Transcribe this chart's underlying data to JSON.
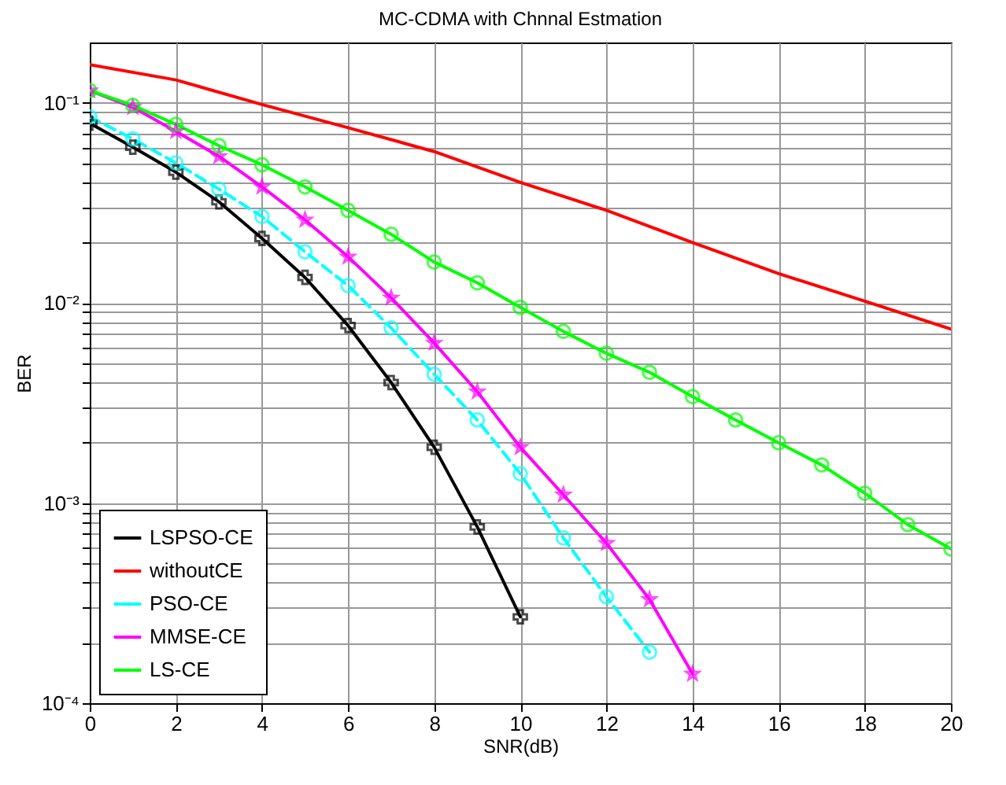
{
  "chart_data": {
    "type": "line",
    "title": "MC-CDMA with Chnnal Estmation",
    "xlabel": "SNR(dB)",
    "ylabel": "BER",
    "log": "y",
    "grid": true,
    "legend": "bottom left",
    "xlim": [
      0,
      20
    ],
    "xticks": [
      0,
      2,
      4,
      6,
      8,
      10,
      12,
      14,
      16,
      18,
      20
    ],
    "ylim": [
      0.0001,
      0.2
    ],
    "yticks": [
      {
        "value": 0.0001,
        "label": "10⁻⁴"
      },
      {
        "value": 0.0002,
        "label": null
      },
      {
        "value": 0.0003,
        "label": null
      },
      {
        "value": 0.0004,
        "label": null
      },
      {
        "value": 0.0005,
        "label": null
      },
      {
        "value": 0.0006,
        "label": null
      },
      {
        "value": 0.0007,
        "label": null
      },
      {
        "value": 0.0008,
        "label": null
      },
      {
        "value": 0.0009,
        "label": null
      },
      {
        "value": 0.001,
        "label": "10⁻³"
      },
      {
        "value": 0.002,
        "label": null
      },
      {
        "value": 0.003,
        "label": null
      },
      {
        "value": 0.004,
        "label": null
      },
      {
        "value": 0.005,
        "label": null
      },
      {
        "value": 0.006,
        "label": null
      },
      {
        "value": 0.007,
        "label": null
      },
      {
        "value": 0.008,
        "label": null
      },
      {
        "value": 0.009,
        "label": null
      },
      {
        "value": 0.01,
        "label": "10⁻²"
      },
      {
        "value": 0.02,
        "label": null
      },
      {
        "value": 0.03,
        "label": null
      },
      {
        "value": 0.04,
        "label": null
      },
      {
        "value": 0.05,
        "label": null
      },
      {
        "value": 0.06,
        "label": null
      },
      {
        "value": 0.07,
        "label": null
      },
      {
        "value": 0.08,
        "label": null
      },
      {
        "value": 0.09,
        "label": null
      },
      {
        "value": 0.1,
        "label": "10⁻¹"
      }
    ],
    "series": [
      {
        "name": "LSPSO-CE",
        "color": "#000000",
        "marker": "cross",
        "line_style": "solid",
        "x": [
          0,
          1,
          2,
          3,
          4,
          5,
          6,
          7,
          8,
          9,
          10
        ],
        "values": [
          0.079,
          0.06,
          0.045,
          0.032,
          0.021,
          0.0134,
          0.0077,
          0.004,
          0.0019,
          0.00076,
          0.00027
        ]
      },
      {
        "name": "withoutCE",
        "color": "#ff0000",
        "marker": "none",
        "line_style": "solid",
        "x": [
          0,
          2,
          4,
          6,
          8,
          10,
          12,
          14,
          16,
          18,
          20
        ],
        "values": [
          0.155,
          0.13,
          0.098,
          0.075,
          0.057,
          0.04,
          0.029,
          0.02,
          0.014,
          0.0102,
          0.0074
        ]
      },
      {
        "name": "PSO-CE",
        "color": "#00ffff",
        "marker": "circle",
        "line_style": "dashed",
        "x": [
          0,
          1,
          2,
          3,
          4,
          5,
          6,
          7,
          8,
          9,
          10,
          11,
          12,
          13
        ],
        "values": [
          0.085,
          0.066,
          0.05,
          0.037,
          0.027,
          0.018,
          0.0122,
          0.0075,
          0.0044,
          0.0026,
          0.0014,
          0.00067,
          0.00034,
          0.00018
        ]
      },
      {
        "name": "MMSE-CE",
        "color": "#ff00ff",
        "marker": "star",
        "line_style": "solid",
        "x": [
          0,
          1,
          2,
          3,
          4,
          5,
          6,
          7,
          8,
          9,
          10,
          11,
          12,
          13,
          14
        ],
        "values": [
          0.115,
          0.095,
          0.072,
          0.054,
          0.038,
          0.026,
          0.017,
          0.0106,
          0.0063,
          0.0036,
          0.0019,
          0.0011,
          0.00063,
          0.00033,
          0.00014
        ]
      },
      {
        "name": "LS-CE",
        "color": "#00ff00",
        "marker": "circle",
        "line_style": "solid",
        "x": [
          0,
          1,
          2,
          3,
          4,
          5,
          6,
          7,
          8,
          9,
          10,
          11,
          12,
          13,
          14,
          15,
          16,
          17,
          18,
          19,
          20
        ],
        "values": [
          0.115,
          0.097,
          0.078,
          0.061,
          0.049,
          0.038,
          0.029,
          0.022,
          0.016,
          0.0126,
          0.0095,
          0.0072,
          0.0056,
          0.0045,
          0.0034,
          0.0026,
          0.002,
          0.00155,
          0.00112,
          0.00078,
          0.00059
        ]
      }
    ]
  }
}
